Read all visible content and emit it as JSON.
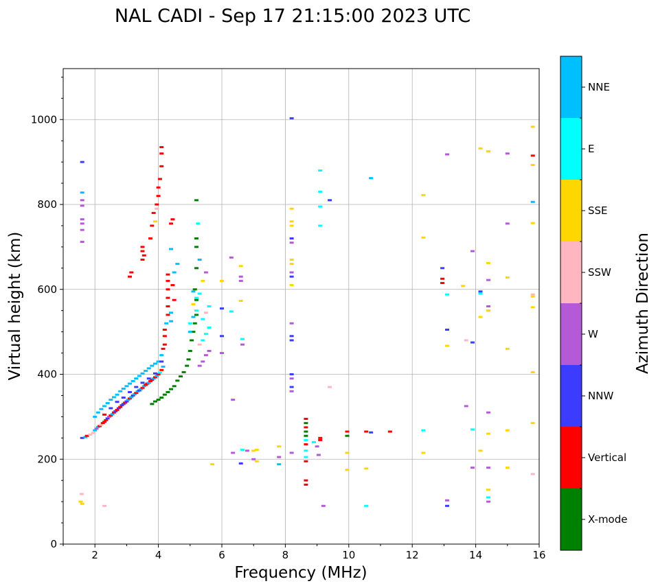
{
  "chart_data": {
    "type": "scatter",
    "title": "NAL CADI - Sep 17 21:15:00 2023 UTC",
    "xlabel": "Frequency (MHz)",
    "ylabel": "Virtual height (km)",
    "xlim": [
      1,
      16
    ],
    "ylim": [
      0,
      1120
    ],
    "xticks": [
      2,
      4,
      6,
      8,
      10,
      12,
      14,
      16
    ],
    "yticks": [
      0,
      200,
      400,
      600,
      800,
      1000
    ],
    "grid": true,
    "colorbar": {
      "label": "Azimuth Direction",
      "categories": [
        {
          "name": "X-mode",
          "color": "#008000"
        },
        {
          "name": "Vertical",
          "color": "#ff0000"
        },
        {
          "name": "NNW",
          "color": "#3c3cff"
        },
        {
          "name": "W",
          "color": "#b45ad6"
        },
        {
          "name": "SSW",
          "color": "#ffb6c1"
        },
        {
          "name": "SSE",
          "color": "#ffd700"
        },
        {
          "name": "E",
          "color": "#00ffff"
        },
        {
          "name": "NNE",
          "color": "#00bfff"
        }
      ]
    },
    "points": [
      [
        1.55,
        100,
        "SSE"
      ],
      [
        1.6,
        95,
        "SSE"
      ],
      [
        1.58,
        118,
        "SSW"
      ],
      [
        2.3,
        90,
        "SSW"
      ],
      [
        5.7,
        188,
        "SSE"
      ],
      [
        1.6,
        712,
        "W"
      ],
      [
        1.6,
        740,
        "W"
      ],
      [
        1.6,
        755,
        "W"
      ],
      [
        1.6,
        765,
        "W"
      ],
      [
        1.6,
        797,
        "W"
      ],
      [
        1.6,
        810,
        "W"
      ],
      [
        1.6,
        828,
        "NNE"
      ],
      [
        1.6,
        900,
        "NNW"
      ],
      [
        1.6,
        250,
        "NNW"
      ],
      [
        1.7,
        252,
        "NNE"
      ],
      [
        1.75,
        255,
        "Vertical"
      ],
      [
        1.85,
        258,
        "SSW"
      ],
      [
        1.95,
        262,
        "SSW"
      ],
      [
        2.0,
        268,
        "NNE"
      ],
      [
        2.05,
        272,
        "W"
      ],
      [
        2.1,
        276,
        "NNE"
      ],
      [
        2.15,
        278,
        "Vertical"
      ],
      [
        2.2,
        281,
        "SSW"
      ],
      [
        2.25,
        285,
        "Vertical"
      ],
      [
        2.3,
        288,
        "Vertical"
      ],
      [
        2.35,
        292,
        "Vertical"
      ],
      [
        2.4,
        296,
        "NNW"
      ],
      [
        2.45,
        300,
        "W"
      ],
      [
        2.5,
        303,
        "Vertical"
      ],
      [
        2.55,
        306,
        "NNE"
      ],
      [
        2.6,
        310,
        "Vertical"
      ],
      [
        2.65,
        313,
        "NNW"
      ],
      [
        2.7,
        316,
        "Vertical"
      ],
      [
        2.75,
        320,
        "NNW"
      ],
      [
        2.8,
        323,
        "Vertical"
      ],
      [
        2.85,
        327,
        "NNW"
      ],
      [
        2.9,
        330,
        "NNW"
      ],
      [
        2.95,
        333,
        "Vertical"
      ],
      [
        3.0,
        336,
        "NNW"
      ],
      [
        3.05,
        340,
        "NNE"
      ],
      [
        3.1,
        343,
        "Vertical"
      ],
      [
        3.15,
        346,
        "NNE"
      ],
      [
        3.2,
        350,
        "NNW"
      ],
      [
        3.25,
        353,
        "NNE"
      ],
      [
        3.3,
        356,
        "Vertical"
      ],
      [
        3.35,
        360,
        "NNE"
      ],
      [
        3.4,
        362,
        "NNW"
      ],
      [
        3.45,
        365,
        "NNE"
      ],
      [
        3.5,
        368,
        "Vertical"
      ],
      [
        3.55,
        372,
        "NNE"
      ],
      [
        3.6,
        375,
        "Vertical"
      ],
      [
        3.65,
        378,
        "Vertical"
      ],
      [
        3.7,
        380,
        "NNE"
      ],
      [
        3.75,
        384,
        "Vertical"
      ],
      [
        3.8,
        387,
        "Vertical"
      ],
      [
        3.85,
        390,
        "NNE"
      ],
      [
        3.9,
        393,
        "Vertical"
      ],
      [
        3.95,
        396,
        "NNE"
      ],
      [
        4.0,
        400,
        "Vertical"
      ],
      [
        4.05,
        404,
        "E"
      ],
      [
        4.1,
        410,
        "Vertical"
      ],
      [
        4.15,
        418,
        "NNE"
      ],
      [
        2.0,
        300,
        "NNE"
      ],
      [
        2.1,
        310,
        "NNE"
      ],
      [
        2.2,
        318,
        "NNE"
      ],
      [
        2.3,
        325,
        "NNE"
      ],
      [
        2.4,
        332,
        "NNE"
      ],
      [
        2.5,
        340,
        "NNE"
      ],
      [
        2.6,
        346,
        "NNE"
      ],
      [
        2.7,
        352,
        "NNE"
      ],
      [
        2.8,
        360,
        "NNE"
      ],
      [
        2.9,
        366,
        "NNE"
      ],
      [
        3.0,
        372,
        "NNE"
      ],
      [
        3.1,
        378,
        "NNE"
      ],
      [
        3.2,
        384,
        "NNE"
      ],
      [
        3.3,
        390,
        "NNE"
      ],
      [
        3.4,
        396,
        "NNE"
      ],
      [
        3.5,
        402,
        "NNE"
      ],
      [
        3.6,
        408,
        "NNE"
      ],
      [
        3.7,
        414,
        "NNE"
      ],
      [
        3.8,
        420,
        "NNE"
      ],
      [
        3.9,
        425,
        "NNE"
      ],
      [
        4.0,
        430,
        "NNE"
      ],
      [
        2.3,
        305,
        "Vertical"
      ],
      [
        2.5,
        320,
        "NNW"
      ],
      [
        2.7,
        335,
        "NNW"
      ],
      [
        2.9,
        345,
        "NNW"
      ],
      [
        3.1,
        358,
        "NNW"
      ],
      [
        3.3,
        370,
        "NNW"
      ],
      [
        3.5,
        380,
        "NNW"
      ],
      [
        3.7,
        390,
        "NNW"
      ],
      [
        3.9,
        402,
        "NNW"
      ],
      [
        4.1,
        430,
        "NNW"
      ],
      [
        4.1,
        445,
        "NNE"
      ],
      [
        4.15,
        460,
        "Vertical"
      ],
      [
        4.2,
        470,
        "Vertical"
      ],
      [
        4.2,
        490,
        "Vertical"
      ],
      [
        4.2,
        505,
        "Vertical"
      ],
      [
        4.25,
        520,
        "NNE"
      ],
      [
        4.3,
        540,
        "Vertical"
      ],
      [
        4.3,
        560,
        "Vertical"
      ],
      [
        4.3,
        580,
        "Vertical"
      ],
      [
        4.3,
        600,
        "Vertical"
      ],
      [
        4.3,
        620,
        "Vertical"
      ],
      [
        4.3,
        635,
        "Vertical"
      ],
      [
        4.4,
        545,
        "NNE"
      ],
      [
        4.4,
        525,
        "NNE"
      ],
      [
        4.5,
        575,
        "Vertical"
      ],
      [
        4.45,
        610,
        "Vertical"
      ],
      [
        4.5,
        640,
        "NNE"
      ],
      [
        4.6,
        660,
        "NNE"
      ],
      [
        4.4,
        695,
        "NNE"
      ],
      [
        4.4,
        755,
        "Vertical"
      ],
      [
        4.45,
        765,
        "Vertical"
      ],
      [
        3.8,
        330,
        "Green"
      ],
      [
        3.9,
        336,
        "X-mode"
      ],
      [
        4.0,
        340,
        "X-mode"
      ],
      [
        4.1,
        345,
        "X-mode"
      ],
      [
        4.2,
        352,
        "X-mode"
      ],
      [
        4.3,
        358,
        "X-mode"
      ],
      [
        4.4,
        365,
        "X-mode"
      ],
      [
        4.5,
        372,
        "X-mode"
      ],
      [
        4.6,
        385,
        "X-mode"
      ],
      [
        4.7,
        395,
        "X-mode"
      ],
      [
        4.8,
        405,
        "X-mode"
      ],
      [
        4.9,
        420,
        "X-mode"
      ],
      [
        4.95,
        435,
        "X-mode"
      ],
      [
        5.0,
        455,
        "X-mode"
      ],
      [
        5.05,
        480,
        "X-mode"
      ],
      [
        5.1,
        500,
        "X-mode"
      ],
      [
        5.15,
        520,
        "X-mode"
      ],
      [
        5.2,
        540,
        "X-mode"
      ],
      [
        5.2,
        575,
        "X-mode"
      ],
      [
        5.15,
        600,
        "X-mode"
      ],
      [
        5.2,
        650,
        "X-mode"
      ],
      [
        5.2,
        700,
        "X-mode"
      ],
      [
        5.2,
        720,
        "X-mode"
      ],
      [
        5.2,
        810,
        "X-mode"
      ],
      [
        5.3,
        420,
        "W"
      ],
      [
        5.4,
        430,
        "W"
      ],
      [
        5.5,
        445,
        "W"
      ],
      [
        5.6,
        455,
        "W"
      ],
      [
        5.3,
        470,
        "SSW"
      ],
      [
        5.4,
        480,
        "E"
      ],
      [
        5.5,
        495,
        "E"
      ],
      [
        5.6,
        510,
        "E"
      ],
      [
        5.4,
        530,
        "E"
      ],
      [
        5.5,
        545,
        "SSW"
      ],
      [
        5.6,
        560,
        "E"
      ],
      [
        5.3,
        590,
        "E"
      ],
      [
        5.4,
        620,
        "SSE"
      ],
      [
        5.5,
        640,
        "W"
      ],
      [
        5.3,
        670,
        "NNE"
      ],
      [
        5.25,
        755,
        "E"
      ],
      [
        5.0,
        500,
        "NNE"
      ],
      [
        5.0,
        520,
        "E"
      ],
      [
        5.1,
        535,
        "NNE"
      ],
      [
        5.2,
        550,
        "E"
      ],
      [
        5.1,
        565,
        "SSE"
      ],
      [
        5.2,
        580,
        "E"
      ],
      [
        5.1,
        595,
        "NNE"
      ],
      [
        3.5,
        700,
        "Vertical"
      ],
      [
        3.5,
        690,
        "Vertical"
      ],
      [
        3.55,
        680,
        "Vertical"
      ],
      [
        3.5,
        670,
        "Vertical"
      ],
      [
        3.1,
        630,
        "Vertical"
      ],
      [
        3.15,
        640,
        "Vertical"
      ],
      [
        3.75,
        720,
        "Vertical"
      ],
      [
        3.8,
        750,
        "Vertical"
      ],
      [
        3.85,
        780,
        "Vertical"
      ],
      [
        3.95,
        800,
        "Vertical"
      ],
      [
        4.0,
        820,
        "Vertical"
      ],
      [
        4.0,
        840,
        "Vertical"
      ],
      [
        4.05,
        860,
        "Vertical"
      ],
      [
        4.1,
        890,
        "Vertical"
      ],
      [
        4.1,
        920,
        "Vertical"
      ],
      [
        4.1,
        935,
        "Vertical"
      ],
      [
        3.9,
        760,
        "SSE"
      ],
      [
        3.95,
        790,
        "SSW"
      ],
      [
        6.0,
        620,
        "SSE"
      ],
      [
        6.0,
        555,
        "NNW"
      ],
      [
        6.0,
        490,
        "NNW"
      ],
      [
        6.0,
        450,
        "W"
      ],
      [
        6.3,
        675,
        "W"
      ],
      [
        6.3,
        548,
        "E"
      ],
      [
        6.35,
        340,
        "W"
      ],
      [
        6.35,
        215,
        "W"
      ],
      [
        6.6,
        655,
        "SSE"
      ],
      [
        6.6,
        630,
        "W"
      ],
      [
        6.6,
        620,
        "W"
      ],
      [
        6.6,
        573,
        "SSE"
      ],
      [
        6.65,
        483,
        "E"
      ],
      [
        6.65,
        470,
        "W"
      ],
      [
        6.6,
        190,
        "NNW"
      ],
      [
        6.65,
        222,
        "E"
      ],
      [
        6.8,
        220,
        "W"
      ],
      [
        7.0,
        220,
        "SSE"
      ],
      [
        7.0,
        200,
        "W"
      ],
      [
        7.1,
        222,
        "SSE"
      ],
      [
        7.1,
        195,
        "SSE"
      ],
      [
        7.8,
        230,
        "SSE"
      ],
      [
        7.8,
        205,
        "W"
      ],
      [
        7.8,
        188,
        "NNE"
      ],
      [
        8.2,
        1003,
        "NNW"
      ],
      [
        8.2,
        790,
        "SSE"
      ],
      [
        8.2,
        760,
        "SSE"
      ],
      [
        8.2,
        750,
        "SSE"
      ],
      [
        8.2,
        720,
        "NNW"
      ],
      [
        8.2,
        710,
        "W"
      ],
      [
        8.2,
        670,
        "SSE"
      ],
      [
        8.2,
        660,
        "SSE"
      ],
      [
        8.2,
        640,
        "W"
      ],
      [
        8.2,
        630,
        "NNW"
      ],
      [
        8.2,
        610,
        "SSE"
      ],
      [
        8.2,
        520,
        "W"
      ],
      [
        8.2,
        490,
        "NNW"
      ],
      [
        8.2,
        480,
        "NNW"
      ],
      [
        8.2,
        400,
        "NNW"
      ],
      [
        8.2,
        390,
        "W"
      ],
      [
        8.2,
        370,
        "NNW"
      ],
      [
        8.2,
        360,
        "W"
      ],
      [
        8.2,
        215,
        "W"
      ],
      [
        8.65,
        295,
        "Vertical"
      ],
      [
        8.65,
        285,
        "X-mode"
      ],
      [
        8.65,
        275,
        "Vertical"
      ],
      [
        8.65,
        265,
        "X-mode"
      ],
      [
        8.65,
        255,
        "X-mode"
      ],
      [
        8.65,
        245,
        "E"
      ],
      [
        8.65,
        235,
        "Vertical"
      ],
      [
        8.65,
        220,
        "E"
      ],
      [
        8.65,
        205,
        "E"
      ],
      [
        8.65,
        195,
        "Vertical"
      ],
      [
        8.65,
        150,
        "Vertical"
      ],
      [
        8.65,
        140,
        "Vertical"
      ],
      [
        8.9,
        240,
        "E"
      ],
      [
        9.0,
        230,
        "W"
      ],
      [
        9.1,
        250,
        "Vertical"
      ],
      [
        9.1,
        245,
        "Vertical"
      ],
      [
        9.05,
        210,
        "W"
      ],
      [
        9.1,
        880,
        "E"
      ],
      [
        9.1,
        830,
        "E"
      ],
      [
        9.1,
        795,
        "E"
      ],
      [
        9.1,
        750,
        "E"
      ],
      [
        9.4,
        810,
        "NNW"
      ],
      [
        9.4,
        370,
        "SSW"
      ],
      [
        9.2,
        90,
        "W"
      ],
      [
        9.95,
        265,
        "Vertical"
      ],
      [
        9.95,
        255,
        "X-mode"
      ],
      [
        9.95,
        215,
        "SSE"
      ],
      [
        9.95,
        175,
        "SSE"
      ],
      [
        10.55,
        265,
        "Vertical"
      ],
      [
        10.55,
        178,
        "SSE"
      ],
      [
        10.7,
        862,
        "NNE"
      ],
      [
        10.7,
        263,
        "NNW"
      ],
      [
        11.3,
        265,
        "Vertical"
      ],
      [
        10.55,
        90,
        "E"
      ],
      [
        12.35,
        822,
        "SSE"
      ],
      [
        12.35,
        722,
        "SSE"
      ],
      [
        12.35,
        268,
        "E"
      ],
      [
        12.35,
        215,
        "SSE"
      ],
      [
        12.95,
        650,
        "NNW"
      ],
      [
        12.95,
        625,
        "Vertical"
      ],
      [
        12.95,
        615,
        "Vertical"
      ],
      [
        13.1,
        918,
        "W"
      ],
      [
        13.1,
        588,
        "E"
      ],
      [
        13.1,
        505,
        "NNW"
      ],
      [
        13.1,
        467,
        "SSE"
      ],
      [
        13.1,
        103,
        "W"
      ],
      [
        13.1,
        90,
        "NNW"
      ],
      [
        13.6,
        608,
        "SSE"
      ],
      [
        13.7,
        480,
        "SSW"
      ],
      [
        13.7,
        325,
        "W"
      ],
      [
        13.9,
        690,
        "W"
      ],
      [
        13.9,
        475,
        "NNW"
      ],
      [
        13.9,
        270,
        "E"
      ],
      [
        13.9,
        180,
        "W"
      ],
      [
        14.15,
        932,
        "SSE"
      ],
      [
        14.15,
        595,
        "NNW"
      ],
      [
        14.15,
        590,
        "E"
      ],
      [
        14.15,
        535,
        "SSE"
      ],
      [
        14.15,
        220,
        "SSE"
      ],
      [
        14.4,
        925,
        "SSE"
      ],
      [
        14.4,
        662,
        "SSE"
      ],
      [
        14.4,
        622,
        "W"
      ],
      [
        14.4,
        560,
        "W"
      ],
      [
        14.4,
        550,
        "SSE"
      ],
      [
        14.4,
        310,
        "W"
      ],
      [
        14.4,
        260,
        "SSE"
      ],
      [
        14.4,
        180,
        "W"
      ],
      [
        14.4,
        128,
        "SSE"
      ],
      [
        14.4,
        110,
        "E"
      ],
      [
        14.4,
        100,
        "W"
      ],
      [
        15.0,
        920,
        "W"
      ],
      [
        15.0,
        755,
        "W"
      ],
      [
        15.0,
        628,
        "SSE"
      ],
      [
        15.0,
        460,
        "SSE"
      ],
      [
        15.0,
        268,
        "SSE"
      ],
      [
        15.0,
        180,
        "SSE"
      ],
      [
        15.8,
        983,
        "SSE"
      ],
      [
        15.8,
        915,
        "Vertical"
      ],
      [
        15.8,
        893,
        "SSE"
      ],
      [
        15.8,
        806,
        "NNE"
      ],
      [
        15.8,
        756,
        "SSE"
      ],
      [
        15.8,
        588,
        "SSW"
      ],
      [
        15.8,
        583,
        "SSE"
      ],
      [
        15.8,
        558,
        "SSE"
      ],
      [
        15.8,
        405,
        "SSE"
      ],
      [
        15.8,
        285,
        "SSE"
      ],
      [
        15.8,
        165,
        "SSW"
      ]
    ]
  }
}
